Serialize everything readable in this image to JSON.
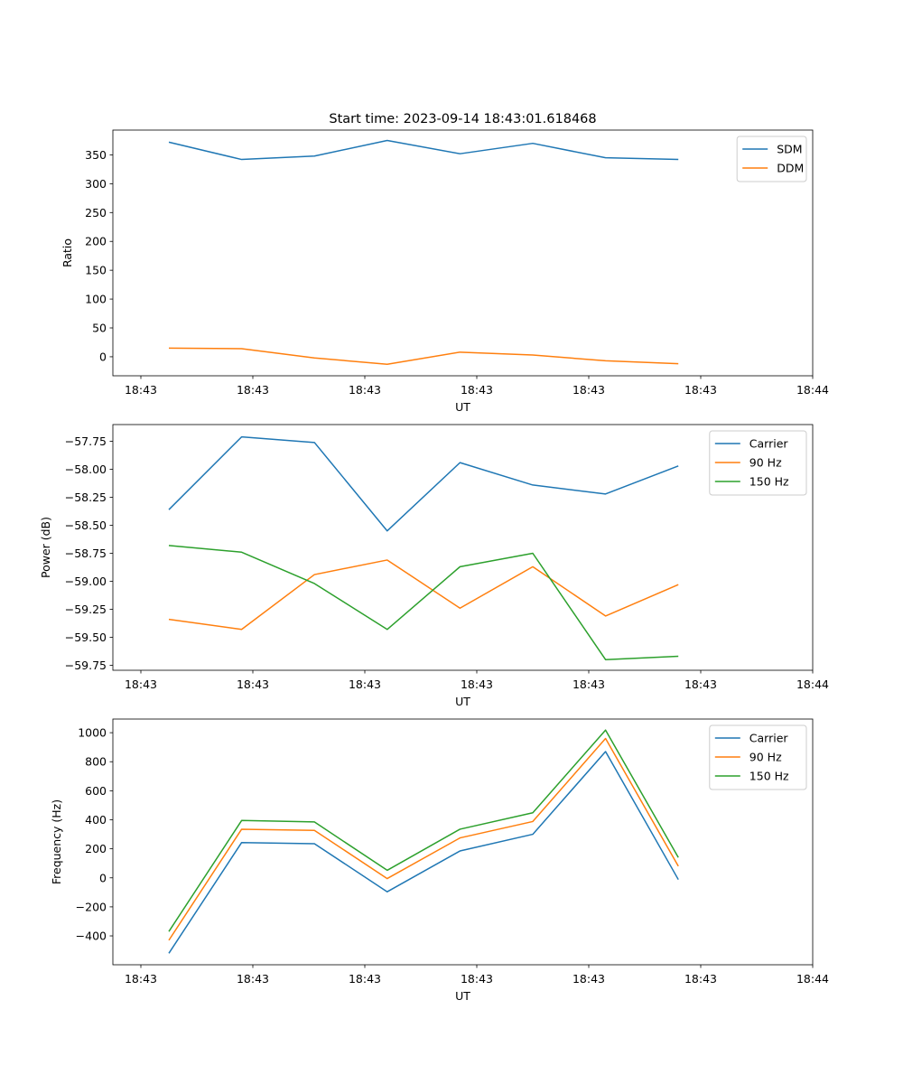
{
  "figure": {
    "title": "Start time: 2023-09-14 18:43:01.618468"
  },
  "x_axis": {
    "label": "UT",
    "tick_labels": [
      "18:43",
      "18:43",
      "18:43",
      "18:43",
      "18:43",
      "18:43",
      "18:44"
    ]
  },
  "colors": {
    "blue": "#1f77b4",
    "orange": "#ff7f0e",
    "green": "#2ca02c"
  },
  "chart_data": [
    {
      "type": "line",
      "title": "Start time: 2023-09-14 18:43:01.618468",
      "xlabel": "UT",
      "ylabel": "Ratio",
      "x": [
        0.5,
        1.15,
        1.8,
        2.45,
        3.1,
        3.75,
        4.4,
        5.05
      ],
      "xlim": [
        0,
        6
      ],
      "ylim": [
        -33,
        393
      ],
      "yticks": [
        0,
        50,
        100,
        150,
        200,
        250,
        300,
        350
      ],
      "legend": "upper right",
      "series": [
        {
          "name": "SDM",
          "color": "#1f77b4",
          "values": [
            372,
            342,
            348,
            375,
            352,
            370,
            345,
            342
          ]
        },
        {
          "name": "DDM",
          "color": "#ff7f0e",
          "values": [
            15,
            14,
            -2,
            -13,
            8,
            3,
            -7,
            -12
          ]
        }
      ]
    },
    {
      "type": "line",
      "xlabel": "UT",
      "ylabel": "Power (dB)",
      "x": [
        0.5,
        1.15,
        1.8,
        2.45,
        3.1,
        3.75,
        4.4,
        5.05
      ],
      "xlim": [
        0,
        6
      ],
      "ylim": [
        -59.795,
        -57.6
      ],
      "yticks": [
        -57.75,
        -58.0,
        -58.25,
        -58.5,
        -58.75,
        -59.0,
        -59.25,
        -59.5,
        -59.75
      ],
      "legend": "upper right",
      "series": [
        {
          "name": "Carrier",
          "color": "#1f77b4",
          "values": [
            -58.36,
            -57.71,
            -57.76,
            -58.55,
            -57.94,
            -58.14,
            -58.22,
            -57.97
          ]
        },
        {
          "name": "90 Hz",
          "color": "#ff7f0e",
          "values": [
            -59.34,
            -59.43,
            -58.94,
            -58.81,
            -59.24,
            -58.87,
            -59.31,
            -59.03
          ]
        },
        {
          "name": "150 Hz",
          "color": "#2ca02c",
          "values": [
            -58.68,
            -58.74,
            -59.02,
            -59.43,
            -58.87,
            -58.75,
            -59.7,
            -59.67
          ]
        }
      ]
    },
    {
      "type": "line",
      "xlabel": "UT",
      "ylabel": "Frequency (Hz)",
      "x": [
        0.5,
        1.15,
        1.8,
        2.45,
        3.1,
        3.75,
        4.4,
        5.05
      ],
      "xlim": [
        0,
        6
      ],
      "ylim": [
        -599,
        1094
      ],
      "yticks": [
        -400,
        -200,
        0,
        200,
        400,
        600,
        800,
        1000
      ],
      "legend": "upper right",
      "series": [
        {
          "name": "Carrier",
          "color": "#1f77b4",
          "values": [
            -520,
            243,
            235,
            -96,
            185,
            300,
            870,
            -12
          ]
        },
        {
          "name": "90 Hz",
          "color": "#ff7f0e",
          "values": [
            -430,
            335,
            327,
            -5,
            275,
            388,
            960,
            80
          ]
        },
        {
          "name": "150 Hz",
          "color": "#2ca02c",
          "values": [
            -370,
            395,
            385,
            52,
            335,
            448,
            1018,
            140
          ]
        }
      ]
    }
  ]
}
